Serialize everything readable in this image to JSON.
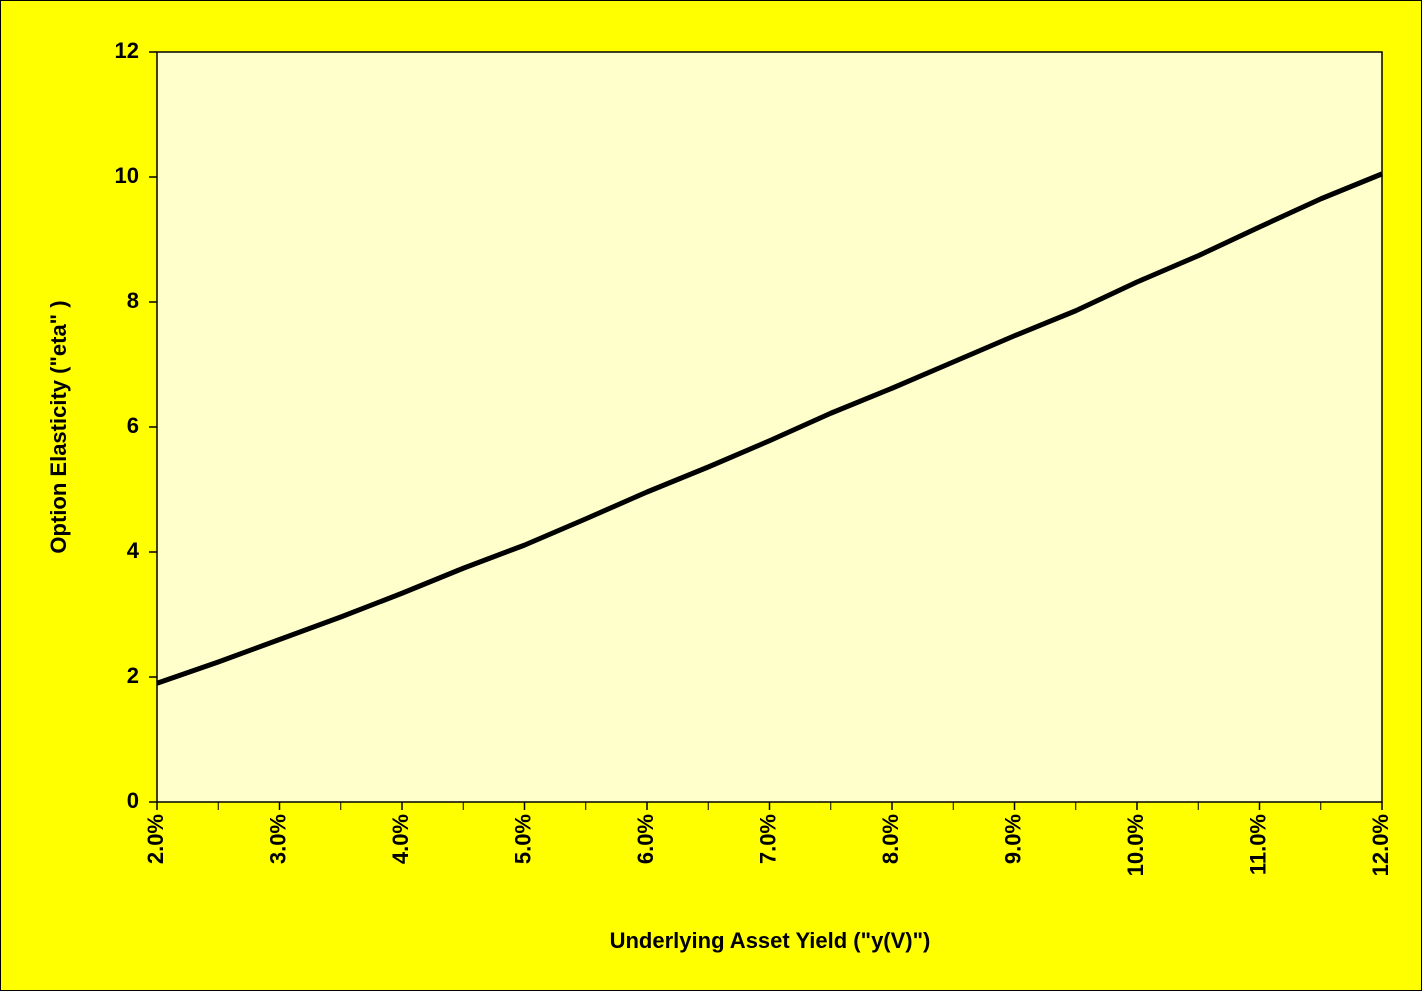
{
  "chart_data": {
    "type": "line",
    "x_label": "Underlying Asset Yield (\"y(V)\")",
    "y_label": "Option Elasticity (\"eta\" )",
    "x": [
      2.0,
      2.5,
      3.0,
      3.5,
      4.0,
      4.5,
      5.0,
      5.5,
      6.0,
      6.5,
      7.0,
      7.5,
      8.0,
      8.5,
      9.0,
      9.5,
      10.0,
      10.5,
      11.0,
      11.5,
      12.0
    ],
    "series": [
      {
        "color": "#000000",
        "values": [
          1.9,
          2.24,
          2.6,
          2.96,
          3.34,
          3.74,
          4.11,
          4.53,
          4.96,
          5.36,
          5.78,
          6.22,
          6.62,
          7.04,
          7.46,
          7.86,
          8.32,
          8.74,
          9.2,
          9.65,
          10.05
        ]
      }
    ],
    "xlim": [
      2,
      12
    ],
    "xticks": [
      {
        "value": 2,
        "label": "2.0%"
      },
      {
        "value": 3,
        "label": "3.0%"
      },
      {
        "value": 4,
        "label": "4.0%"
      },
      {
        "value": 5,
        "label": "5.0%"
      },
      {
        "value": 6,
        "label": "6.0%"
      },
      {
        "value": 7,
        "label": "7.0%"
      },
      {
        "value": 8,
        "label": "8.0%"
      },
      {
        "value": 9,
        "label": "9.0%"
      },
      {
        "value": 10,
        "label": "10.0%"
      },
      {
        "value": 11,
        "label": "11.0%"
      },
      {
        "value": 12,
        "label": "12.0%"
      }
    ],
    "ylim": [
      0,
      12
    ],
    "yticks": [
      0,
      2,
      4,
      6,
      8,
      10,
      12
    ],
    "grid": false
  }
}
